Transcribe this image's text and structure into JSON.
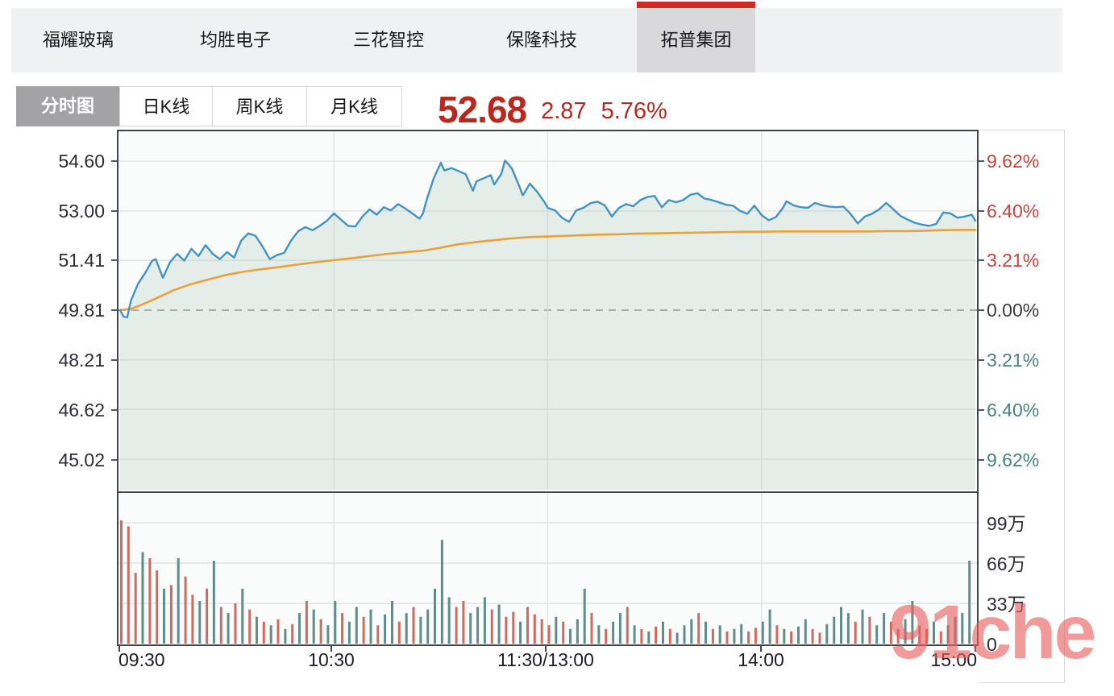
{
  "stock_tabs": {
    "items": [
      {
        "label": "福耀玻璃",
        "selected": false
      },
      {
        "label": "均胜电子",
        "selected": false
      },
      {
        "label": "三花智控",
        "selected": false
      },
      {
        "label": "保隆科技",
        "selected": false
      },
      {
        "label": "拓普集团",
        "selected": true
      }
    ]
  },
  "chart_tabs": {
    "items": [
      {
        "label": "分时图",
        "selected": true
      },
      {
        "label": "日K线",
        "selected": false
      },
      {
        "label": "周K线",
        "selected": false
      },
      {
        "label": "月K线",
        "selected": false
      }
    ]
  },
  "quote": {
    "price": "52.68",
    "change": "2.87",
    "change_percent": "5.76%"
  },
  "watermark": "91che",
  "colors": {
    "accent_red": "#ce2a28",
    "quote_red": "#b8281f",
    "pct_up": "#c9423c",
    "pct_flat": "#3a3a42",
    "pct_down": "#47837e",
    "price_line": "#4293c4",
    "avg_line": "#e9a13b",
    "area_fill": "rgba(173,196,183,0.28)",
    "up_bar": "#5f8d8a",
    "down_bar": "#cf6a5f",
    "grid": "#e0e5e4",
    "dashed_ref": "#8a8a8a",
    "watermark_red": "#e95d5d"
  },
  "chart_data": {
    "type": "line",
    "title": "拓普集团 分时图",
    "x_axis": {
      "labels": [
        "09:30",
        "10:30",
        "11:30/13:00",
        "14:00",
        "15:00"
      ],
      "label_minutes": [
        0,
        60,
        120,
        180,
        240
      ],
      "grid_minutes": [
        60,
        120,
        180
      ],
      "minutes_total": 240
    },
    "y_axis_price": {
      "labels": [
        "54.60",
        "53.00",
        "51.41",
        "49.81",
        "48.21",
        "46.62",
        "45.02"
      ],
      "values": [
        54.6,
        53.0,
        51.41,
        49.81,
        48.21,
        46.62,
        45.02
      ],
      "prev_close": 49.81
    },
    "y_axis_percent": {
      "labels": [
        "9.62%",
        "6.40%",
        "3.21%",
        "0.00%",
        "3.21%",
        "6.40%",
        "9.62%"
      ],
      "roles": [
        "up",
        "up",
        "up",
        "flat",
        "down",
        "down",
        "down"
      ]
    },
    "volume_axis": {
      "labels": [
        "99万",
        "66万",
        "33万",
        "0"
      ],
      "values": [
        99,
        66,
        33,
        0
      ],
      "unit": "万"
    },
    "series": [
      {
        "name": "price",
        "color_key": "price_line",
        "points": [
          [
            0,
            49.81
          ],
          [
            1,
            49.6
          ],
          [
            2,
            49.58
          ],
          [
            3,
            50.1
          ],
          [
            5,
            50.65
          ],
          [
            7,
            51.0
          ],
          [
            9,
            51.4
          ],
          [
            10,
            51.45
          ],
          [
            11,
            51.15
          ],
          [
            12,
            50.85
          ],
          [
            14,
            51.35
          ],
          [
            16,
            51.62
          ],
          [
            18,
            51.4
          ],
          [
            20,
            51.78
          ],
          [
            22,
            51.55
          ],
          [
            24,
            51.9
          ],
          [
            26,
            51.62
          ],
          [
            28,
            51.45
          ],
          [
            30,
            51.68
          ],
          [
            32,
            51.5
          ],
          [
            34,
            52.05
          ],
          [
            36,
            52.28
          ],
          [
            38,
            52.2
          ],
          [
            40,
            51.85
          ],
          [
            42,
            51.45
          ],
          [
            44,
            51.58
          ],
          [
            46,
            51.65
          ],
          [
            48,
            52.05
          ],
          [
            50,
            52.35
          ],
          [
            52,
            52.48
          ],
          [
            54,
            52.38
          ],
          [
            56,
            52.52
          ],
          [
            58,
            52.68
          ],
          [
            60,
            52.92
          ],
          [
            62,
            52.72
          ],
          [
            64,
            52.52
          ],
          [
            66,
            52.5
          ],
          [
            68,
            52.82
          ],
          [
            70,
            53.05
          ],
          [
            72,
            52.88
          ],
          [
            74,
            53.12
          ],
          [
            76,
            53.02
          ],
          [
            78,
            53.22
          ],
          [
            80,
            53.08
          ],
          [
            82,
            52.92
          ],
          [
            84,
            52.75
          ],
          [
            85,
            52.92
          ],
          [
            86,
            53.35
          ],
          [
            88,
            54.05
          ],
          [
            90,
            54.55
          ],
          [
            91,
            54.3
          ],
          [
            93,
            54.38
          ],
          [
            95,
            54.28
          ],
          [
            97,
            54.18
          ],
          [
            99,
            53.65
          ],
          [
            100,
            53.95
          ],
          [
            102,
            54.05
          ],
          [
            104,
            54.15
          ],
          [
            105,
            53.85
          ],
          [
            107,
            54.2
          ],
          [
            108,
            54.62
          ],
          [
            109,
            54.5
          ],
          [
            110,
            54.35
          ],
          [
            112,
            53.8
          ],
          [
            113,
            53.5
          ],
          [
            115,
            53.88
          ],
          [
            117,
            53.62
          ],
          [
            119,
            53.3
          ],
          [
            120,
            53.1
          ],
          [
            122,
            53.02
          ],
          [
            124,
            52.78
          ],
          [
            126,
            52.65
          ],
          [
            128,
            53.02
          ],
          [
            130,
            53.1
          ],
          [
            132,
            53.25
          ],
          [
            134,
            53.3
          ],
          [
            136,
            53.18
          ],
          [
            138,
            52.82
          ],
          [
            140,
            53.1
          ],
          [
            142,
            53.22
          ],
          [
            144,
            53.15
          ],
          [
            146,
            53.35
          ],
          [
            148,
            53.45
          ],
          [
            150,
            53.48
          ],
          [
            152,
            53.12
          ],
          [
            154,
            53.35
          ],
          [
            156,
            53.28
          ],
          [
            158,
            53.35
          ],
          [
            160,
            53.52
          ],
          [
            162,
            53.57
          ],
          [
            164,
            53.4
          ],
          [
            166,
            53.35
          ],
          [
            168,
            53.28
          ],
          [
            170,
            53.2
          ],
          [
            172,
            53.17
          ],
          [
            174,
            53.0
          ],
          [
            176,
            52.91
          ],
          [
            178,
            53.17
          ],
          [
            180,
            52.87
          ],
          [
            182,
            52.7
          ],
          [
            184,
            52.8
          ],
          [
            186,
            53.1
          ],
          [
            187,
            53.31
          ],
          [
            189,
            53.18
          ],
          [
            191,
            53.12
          ],
          [
            193,
            53.1
          ],
          [
            195,
            53.26
          ],
          [
            197,
            53.18
          ],
          [
            199,
            53.14
          ],
          [
            201,
            53.12
          ],
          [
            203,
            53.14
          ],
          [
            205,
            52.9
          ],
          [
            207,
            52.6
          ],
          [
            209,
            52.82
          ],
          [
            211,
            52.91
          ],
          [
            213,
            53.05
          ],
          [
            215,
            53.26
          ],
          [
            217,
            53.05
          ],
          [
            219,
            52.84
          ],
          [
            221,
            52.72
          ],
          [
            223,
            52.62
          ],
          [
            225,
            52.56
          ],
          [
            227,
            52.52
          ],
          [
            229,
            52.58
          ],
          [
            231,
            52.95
          ],
          [
            233,
            52.92
          ],
          [
            235,
            52.78
          ],
          [
            237,
            52.82
          ],
          [
            239,
            52.88
          ],
          [
            240,
            52.68
          ]
        ]
      },
      {
        "name": "avg",
        "color_key": "avg_line",
        "points": [
          [
            0,
            49.81
          ],
          [
            3,
            49.85
          ],
          [
            6,
            49.98
          ],
          [
            10,
            50.18
          ],
          [
            15,
            50.45
          ],
          [
            20,
            50.65
          ],
          [
            25,
            50.8
          ],
          [
            30,
            50.95
          ],
          [
            35,
            51.05
          ],
          [
            40,
            51.13
          ],
          [
            45,
            51.2
          ],
          [
            50,
            51.28
          ],
          [
            55,
            51.35
          ],
          [
            60,
            51.42
          ],
          [
            65,
            51.48
          ],
          [
            70,
            51.55
          ],
          [
            75,
            51.62
          ],
          [
            80,
            51.67
          ],
          [
            85,
            51.72
          ],
          [
            90,
            51.82
          ],
          [
            95,
            51.93
          ],
          [
            100,
            52.0
          ],
          [
            105,
            52.06
          ],
          [
            110,
            52.12
          ],
          [
            115,
            52.16
          ],
          [
            120,
            52.18
          ],
          [
            125,
            52.2
          ],
          [
            130,
            52.22
          ],
          [
            135,
            52.24
          ],
          [
            140,
            52.25
          ],
          [
            145,
            52.27
          ],
          [
            150,
            52.28
          ],
          [
            155,
            52.29
          ],
          [
            160,
            52.3
          ],
          [
            165,
            52.31
          ],
          [
            170,
            52.32
          ],
          [
            175,
            52.33
          ],
          [
            180,
            52.33
          ],
          [
            185,
            52.34
          ],
          [
            190,
            52.34
          ],
          [
            195,
            52.34
          ],
          [
            200,
            52.34
          ],
          [
            205,
            52.34
          ],
          [
            210,
            52.34
          ],
          [
            215,
            52.35
          ],
          [
            220,
            52.35
          ],
          [
            225,
            52.36
          ],
          [
            230,
            52.38
          ],
          [
            235,
            52.39
          ],
          [
            240,
            52.39
          ]
        ]
      }
    ],
    "volume_bars": [
      [
        101,
        "d"
      ],
      [
        96,
        "d"
      ],
      [
        58,
        "d"
      ],
      [
        75,
        "u"
      ],
      [
        70,
        "d"
      ],
      [
        60,
        "d"
      ],
      [
        45,
        "u"
      ],
      [
        48,
        "d"
      ],
      [
        70,
        "u"
      ],
      [
        55,
        "d"
      ],
      [
        40,
        "d"
      ],
      [
        35,
        "u"
      ],
      [
        45,
        "d"
      ],
      [
        68,
        "u"
      ],
      [
        30,
        "d"
      ],
      [
        25,
        "u"
      ],
      [
        33,
        "d"
      ],
      [
        45,
        "u"
      ],
      [
        28,
        "d"
      ],
      [
        22,
        "u"
      ],
      [
        18,
        "d"
      ],
      [
        15,
        "u"
      ],
      [
        20,
        "d"
      ],
      [
        12,
        "u"
      ],
      [
        16,
        "d"
      ],
      [
        25,
        "u"
      ],
      [
        35,
        "d"
      ],
      [
        28,
        "u"
      ],
      [
        20,
        "d"
      ],
      [
        15,
        "u"
      ],
      [
        35,
        "u"
      ],
      [
        25,
        "d"
      ],
      [
        18,
        "u"
      ],
      [
        30,
        "u"
      ],
      [
        22,
        "d"
      ],
      [
        28,
        "u"
      ],
      [
        15,
        "d"
      ],
      [
        24,
        "u"
      ],
      [
        35,
        "u"
      ],
      [
        18,
        "d"
      ],
      [
        25,
        "u"
      ],
      [
        30,
        "d"
      ],
      [
        22,
        "u"
      ],
      [
        28,
        "u"
      ],
      [
        45,
        "u"
      ],
      [
        85,
        "u"
      ],
      [
        38,
        "u"
      ],
      [
        30,
        "d"
      ],
      [
        35,
        "d"
      ],
      [
        25,
        "u"
      ],
      [
        30,
        "u"
      ],
      [
        38,
        "u"
      ],
      [
        28,
        "d"
      ],
      [
        32,
        "u"
      ],
      [
        22,
        "d"
      ],
      [
        26,
        "d"
      ],
      [
        18,
        "u"
      ],
      [
        30,
        "d"
      ],
      [
        24,
        "d"
      ],
      [
        20,
        "d"
      ],
      [
        15,
        "d"
      ],
      [
        22,
        "u"
      ],
      [
        18,
        "d"
      ],
      [
        12,
        "u"
      ],
      [
        20,
        "u"
      ],
      [
        45,
        "u"
      ],
      [
        25,
        "d"
      ],
      [
        15,
        "u"
      ],
      [
        12,
        "d"
      ],
      [
        18,
        "u"
      ],
      [
        25,
        "u"
      ],
      [
        30,
        "d"
      ],
      [
        15,
        "u"
      ],
      [
        12,
        "d"
      ],
      [
        10,
        "u"
      ],
      [
        14,
        "d"
      ],
      [
        18,
        "u"
      ],
      [
        12,
        "d"
      ],
      [
        9,
        "u"
      ],
      [
        15,
        "u"
      ],
      [
        20,
        "u"
      ],
      [
        25,
        "d"
      ],
      [
        18,
        "u"
      ],
      [
        12,
        "d"
      ],
      [
        15,
        "u"
      ],
      [
        10,
        "d"
      ],
      [
        12,
        "u"
      ],
      [
        16,
        "u"
      ],
      [
        10,
        "d"
      ],
      [
        13,
        "d"
      ],
      [
        18,
        "u"
      ],
      [
        28,
        "u"
      ],
      [
        15,
        "d"
      ],
      [
        12,
        "u"
      ],
      [
        10,
        "d"
      ],
      [
        14,
        "u"
      ],
      [
        20,
        "u"
      ],
      [
        12,
        "d"
      ],
      [
        9,
        "d"
      ],
      [
        16,
        "u"
      ],
      [
        22,
        "u"
      ],
      [
        30,
        "u"
      ],
      [
        25,
        "u"
      ],
      [
        18,
        "d"
      ],
      [
        28,
        "u"
      ],
      [
        22,
        "d"
      ],
      [
        15,
        "u"
      ],
      [
        25,
        "u"
      ],
      [
        18,
        "d"
      ],
      [
        12,
        "d"
      ],
      [
        20,
        "u"
      ],
      [
        35,
        "u"
      ],
      [
        15,
        "d"
      ],
      [
        12,
        "d"
      ],
      [
        18,
        "u"
      ],
      [
        10,
        "d"
      ],
      [
        15,
        "u"
      ],
      [
        22,
        "u"
      ],
      [
        25,
        "u"
      ],
      [
        68,
        "u"
      ]
    ]
  }
}
